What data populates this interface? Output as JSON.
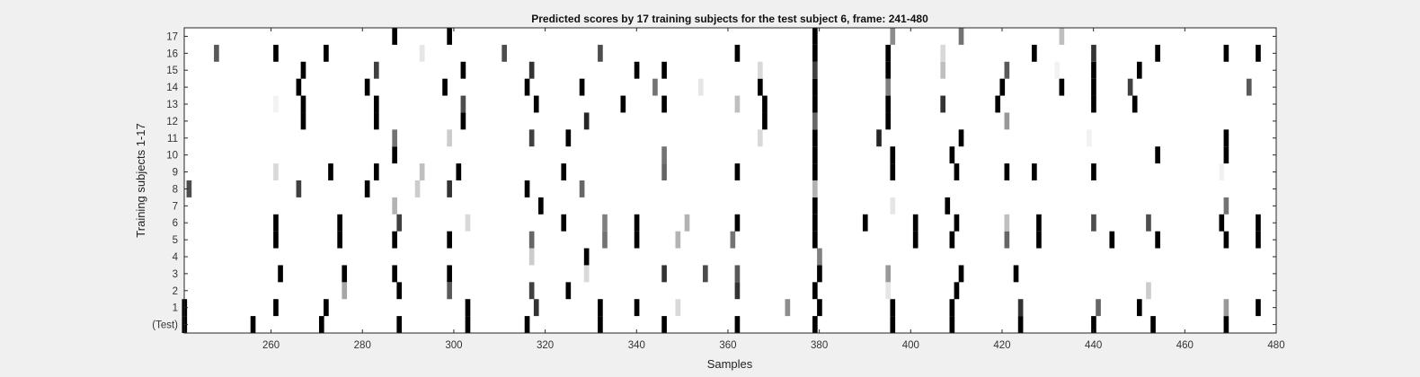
{
  "chart_data": {
    "type": "heatmap",
    "title": "Predicted scores by 17 training subjects for the test subject 6, frame: 241-480",
    "xlabel": "Samples",
    "ylabel": "Training subjects 1-17",
    "xlim": [
      241,
      480
    ],
    "x_ticks": [
      260,
      280,
      300,
      320,
      340,
      360,
      380,
      400,
      420,
      440,
      460,
      480
    ],
    "y_ticks": [
      "(Test)",
      "1",
      "2",
      "3",
      "4",
      "5",
      "6",
      "7",
      "8",
      "9",
      "10",
      "11",
      "12",
      "13",
      "14",
      "15",
      "16",
      "17"
    ],
    "colormap": "gray (white = 0, black = 1)",
    "grid": false,
    "rows": [
      {
        "label": "(Test)",
        "marks": [
          [
            241,
            1
          ],
          [
            256,
            1
          ],
          [
            271,
            1
          ],
          [
            288,
            1
          ],
          [
            303,
            1
          ],
          [
            316,
            1
          ],
          [
            332,
            1
          ],
          [
            346,
            1
          ],
          [
            362,
            1
          ],
          [
            379,
            1
          ],
          [
            396,
            1
          ],
          [
            409,
            1
          ],
          [
            424,
            1
          ],
          [
            440,
            1
          ],
          [
            453,
            1
          ],
          [
            469,
            1
          ]
        ]
      },
      {
        "label": "1",
        "marks": [
          [
            241,
            1
          ],
          [
            261,
            1
          ],
          [
            272,
            1
          ],
          [
            303,
            1
          ],
          [
            318,
            0.8
          ],
          [
            332,
            1
          ],
          [
            340,
            1
          ],
          [
            349,
            0.15
          ],
          [
            373,
            0.45
          ],
          [
            380,
            1
          ],
          [
            396,
            1
          ],
          [
            409,
            1
          ],
          [
            424,
            0.8
          ],
          [
            441,
            0.6
          ],
          [
            450,
            1
          ],
          [
            469,
            0.4
          ],
          [
            476,
            1
          ]
        ]
      },
      {
        "label": "2",
        "marks": [
          [
            276,
            0.35
          ],
          [
            288,
            1
          ],
          [
            299,
            0.65
          ],
          [
            317,
            0.75
          ],
          [
            325,
            1
          ],
          [
            362,
            0.8
          ],
          [
            379,
            1
          ],
          [
            395,
            0.1
          ],
          [
            410,
            1
          ],
          [
            452,
            0.2
          ]
        ]
      },
      {
        "label": "3",
        "marks": [
          [
            262,
            1
          ],
          [
            276,
            1
          ],
          [
            287,
            1
          ],
          [
            299,
            1
          ],
          [
            329,
            0.15
          ],
          [
            346,
            0.8
          ],
          [
            355,
            0.7
          ],
          [
            362,
            0.65
          ],
          [
            380,
            1
          ],
          [
            395,
            0.4
          ],
          [
            411,
            1
          ],
          [
            423,
            1
          ]
        ]
      },
      {
        "label": "4",
        "marks": [
          [
            317,
            0.2
          ],
          [
            329,
            1
          ],
          [
            380,
            0.5
          ]
        ]
      },
      {
        "label": "5",
        "marks": [
          [
            261,
            1
          ],
          [
            275,
            1
          ],
          [
            287,
            1
          ],
          [
            299,
            1
          ],
          [
            317,
            0.6
          ],
          [
            333,
            0.55
          ],
          [
            340,
            1
          ],
          [
            349,
            0.3
          ],
          [
            361,
            0.55
          ],
          [
            379,
            1
          ],
          [
            401,
            1
          ],
          [
            409,
            1
          ],
          [
            421,
            0.6
          ],
          [
            428,
            1
          ],
          [
            444,
            1
          ],
          [
            454,
            1
          ],
          [
            469,
            1
          ],
          [
            476,
            1
          ]
        ]
      },
      {
        "label": "6",
        "marks": [
          [
            261,
            1
          ],
          [
            275,
            1
          ],
          [
            288,
            0.75
          ],
          [
            303,
            0.15
          ],
          [
            324,
            1
          ],
          [
            333,
            0.5
          ],
          [
            340,
            1
          ],
          [
            351,
            0.3
          ],
          [
            362,
            1
          ],
          [
            379,
            1
          ],
          [
            390,
            1
          ],
          [
            401,
            1
          ],
          [
            410,
            1
          ],
          [
            421,
            0.25
          ],
          [
            428,
            1
          ],
          [
            440,
            0.7
          ],
          [
            452,
            0.7
          ],
          [
            468,
            1
          ],
          [
            476,
            1
          ]
        ]
      },
      {
        "label": "7",
        "marks": [
          [
            287,
            0.3
          ],
          [
            319,
            1
          ],
          [
            379,
            1
          ],
          [
            396,
            0.1
          ],
          [
            408,
            1
          ],
          [
            469,
            0.55
          ]
        ]
      },
      {
        "label": "8",
        "marks": [
          [
            242,
            0.7
          ],
          [
            266,
            0.75
          ],
          [
            281,
            1
          ],
          [
            292,
            0.2
          ],
          [
            299,
            0.8
          ],
          [
            316,
            1
          ],
          [
            328,
            0.6
          ],
          [
            379,
            0.3
          ]
        ]
      },
      {
        "label": "9",
        "marks": [
          [
            261,
            0.15
          ],
          [
            273,
            1
          ],
          [
            283,
            1
          ],
          [
            293,
            0.25
          ],
          [
            301,
            1
          ],
          [
            324,
            1
          ],
          [
            346,
            0.6
          ],
          [
            362,
            1
          ],
          [
            379,
            1
          ],
          [
            396,
            1
          ],
          [
            410,
            1
          ],
          [
            421,
            1
          ],
          [
            427,
            1
          ],
          [
            440,
            1
          ],
          [
            468,
            0.05
          ]
        ]
      },
      {
        "label": "10",
        "marks": [
          [
            287,
            1
          ],
          [
            346,
            0.55
          ],
          [
            379,
            1
          ],
          [
            396,
            1
          ],
          [
            409,
            1
          ],
          [
            454,
            1
          ],
          [
            469,
            1
          ]
        ]
      },
      {
        "label": "11",
        "marks": [
          [
            287,
            0.55
          ],
          [
            299,
            0.2
          ],
          [
            317,
            0.75
          ],
          [
            325,
            1
          ],
          [
            367,
            0.15
          ],
          [
            379,
            1
          ],
          [
            393,
            0.85
          ],
          [
            411,
            1
          ],
          [
            439,
            0.05
          ],
          [
            469,
            1
          ]
        ]
      },
      {
        "label": "12",
        "marks": [
          [
            267,
            1
          ],
          [
            283,
            1
          ],
          [
            302,
            1
          ],
          [
            329,
            0.85
          ],
          [
            368,
            1
          ],
          [
            379,
            0.6
          ],
          [
            395,
            1
          ],
          [
            421,
            0.4
          ]
        ]
      },
      {
        "label": "13",
        "marks": [
          [
            261,
            0.05
          ],
          [
            267,
            1
          ],
          [
            283,
            1
          ],
          [
            302,
            0.7
          ],
          [
            318,
            1
          ],
          [
            337,
            1
          ],
          [
            346,
            1
          ],
          [
            362,
            0.25
          ],
          [
            368,
            1
          ],
          [
            379,
            1
          ],
          [
            395,
            1
          ],
          [
            407,
            0.8
          ],
          [
            419,
            1
          ],
          [
            440,
            1
          ],
          [
            449,
            1
          ]
        ]
      },
      {
        "label": "14",
        "marks": [
          [
            266,
            1
          ],
          [
            281,
            1
          ],
          [
            298,
            1
          ],
          [
            316,
            1
          ],
          [
            328,
            1
          ],
          [
            344,
            0.55
          ],
          [
            354,
            0.1
          ],
          [
            367,
            1
          ],
          [
            379,
            1
          ],
          [
            395,
            0.5
          ],
          [
            420,
            1
          ],
          [
            433,
            1
          ],
          [
            440,
            1
          ],
          [
            448,
            0.75
          ],
          [
            474,
            0.65
          ]
        ]
      },
      {
        "label": "15",
        "marks": [
          [
            267,
            1
          ],
          [
            283,
            0.75
          ],
          [
            302,
            1
          ],
          [
            317,
            0.8
          ],
          [
            340,
            1
          ],
          [
            346,
            1
          ],
          [
            367,
            0.15
          ],
          [
            379,
            0.75
          ],
          [
            395,
            1
          ],
          [
            407,
            0.25
          ],
          [
            421,
            0.65
          ],
          [
            432,
            0.05
          ],
          [
            440,
            1
          ],
          [
            450,
            1
          ]
        ]
      },
      {
        "label": "16",
        "marks": [
          [
            248,
            0.65
          ],
          [
            261,
            1
          ],
          [
            272,
            1
          ],
          [
            293,
            0.1
          ],
          [
            311,
            0.7
          ],
          [
            332,
            0.7
          ],
          [
            362,
            1
          ],
          [
            379,
            1
          ],
          [
            395,
            1
          ],
          [
            407,
            0.15
          ],
          [
            427,
            1
          ],
          [
            440,
            0.8
          ],
          [
            454,
            1
          ],
          [
            469,
            1
          ],
          [
            476,
            1
          ]
        ]
      },
      {
        "label": "17",
        "marks": [
          [
            287,
            1
          ],
          [
            299,
            1
          ],
          [
            379,
            1
          ],
          [
            396,
            0.45
          ],
          [
            411,
            0.55
          ],
          [
            433,
            0.25
          ]
        ]
      }
    ]
  }
}
